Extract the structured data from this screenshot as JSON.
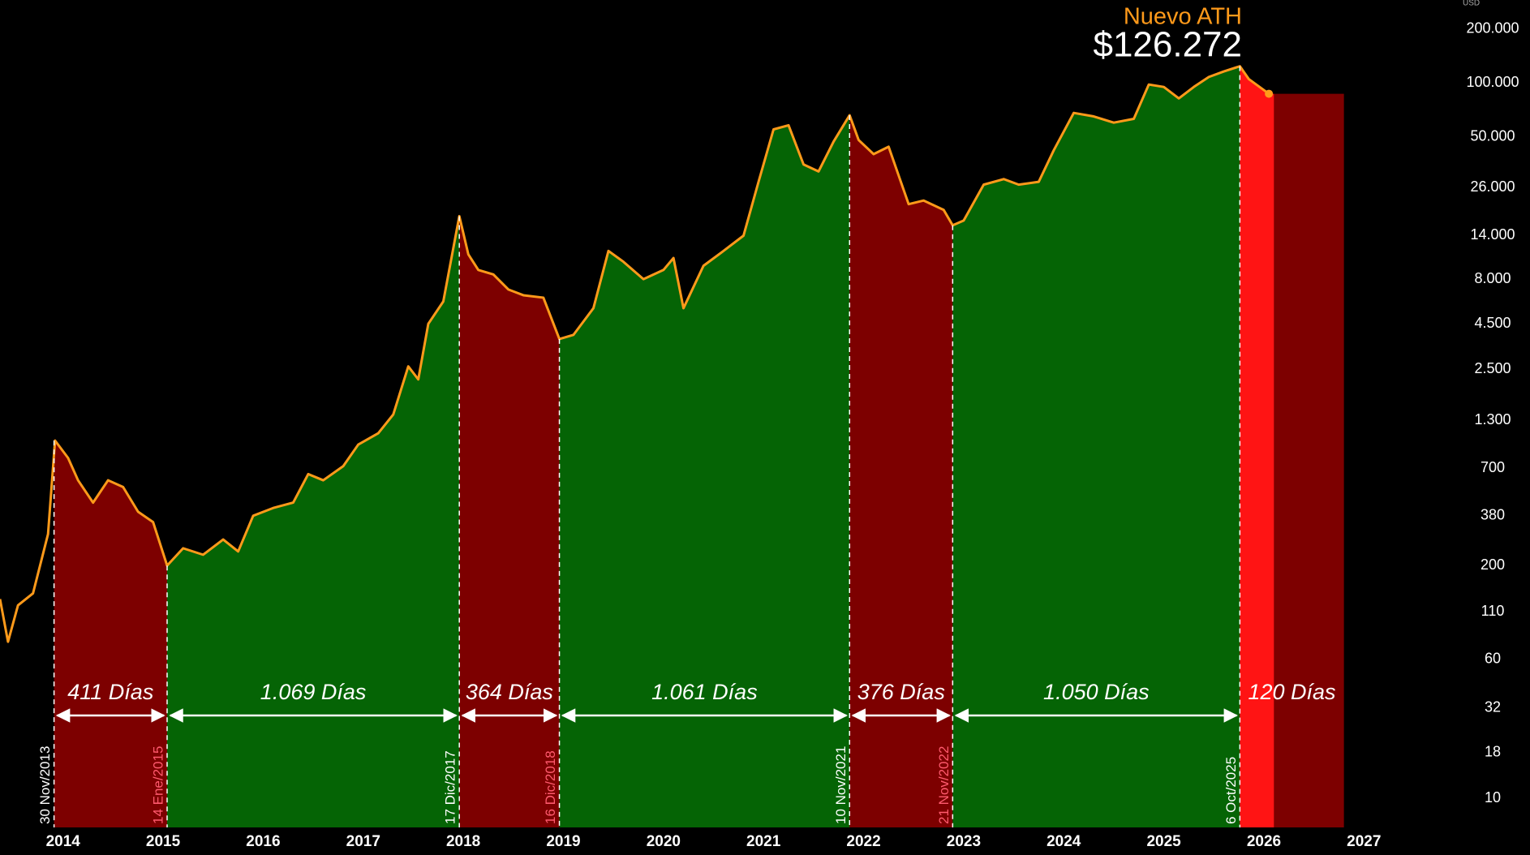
{
  "chart_data": {
    "type": "line",
    "currency": "USD",
    "annotation": {
      "title": "Nuevo ATH",
      "value": 126272,
      "label": "$126.272",
      "x": 2025.76
    },
    "x": [
      2013.37,
      2013.45,
      2013.55,
      2013.7,
      2013.85,
      2013.92,
      2014.05,
      2014.15,
      2014.3,
      2014.45,
      2014.6,
      2014.75,
      2014.9,
      2015.04,
      2015.2,
      2015.4,
      2015.6,
      2015.75,
      2015.9,
      2016.1,
      2016.3,
      2016.45,
      2016.6,
      2016.8,
      2016.95,
      2017.15,
      2017.3,
      2017.45,
      2017.55,
      2017.65,
      2017.8,
      2017.96,
      2018.05,
      2018.15,
      2018.3,
      2018.45,
      2018.6,
      2018.8,
      2018.96,
      2019.1,
      2019.3,
      2019.45,
      2019.6,
      2019.8,
      2020.0,
      2020.1,
      2020.2,
      2020.4,
      2020.6,
      2020.8,
      2020.95,
      2021.1,
      2021.25,
      2021.4,
      2021.55,
      2021.7,
      2021.86,
      2021.95,
      2022.1,
      2022.25,
      2022.45,
      2022.6,
      2022.8,
      2022.89,
      2023.0,
      2023.2,
      2023.4,
      2023.55,
      2023.75,
      2023.9,
      2024.1,
      2024.3,
      2024.5,
      2024.7,
      2024.85,
      2025.0,
      2025.15,
      2025.3,
      2025.45,
      2025.6,
      2025.76,
      2025.85,
      2026.05
    ],
    "values": [
      130,
      75,
      120,
      140,
      300,
      1000,
      800,
      600,
      450,
      600,
      550,
      400,
      350,
      200,
      250,
      230,
      280,
      240,
      380,
      420,
      450,
      650,
      600,
      720,
      950,
      1100,
      1400,
      2600,
      2200,
      4500,
      6000,
      18000,
      11000,
      9000,
      8500,
      7000,
      6500,
      6300,
      3700,
      3900,
      5500,
      11500,
      10000,
      8000,
      9000,
      10500,
      5500,
      9500,
      11500,
      14000,
      28000,
      55000,
      58000,
      35000,
      32000,
      47000,
      66000,
      48000,
      40000,
      44000,
      21000,
      22000,
      19500,
      16000,
      17000,
      27000,
      29000,
      27000,
      28000,
      42000,
      68000,
      65000,
      60000,
      63000,
      98000,
      95000,
      82000,
      95000,
      108000,
      116000,
      124000,
      105000,
      87000
    ],
    "color": "#ff9a1a",
    "log_scale": true,
    "xlim": [
      2013.37,
      2027.8
    ],
    "ylim": [
      6.87,
      291000
    ],
    "xticks": [
      2014,
      2015,
      2016,
      2017,
      2018,
      2019,
      2020,
      2021,
      2022,
      2023,
      2024,
      2025,
      2026,
      2027
    ],
    "yticks": [
      10,
      18,
      32,
      60,
      110,
      200,
      380,
      700,
      {
        "value": 1300,
        "label": "1.300"
      },
      {
        "value": 2500,
        "label": "2.500"
      },
      {
        "value": 4500,
        "label": "4.500"
      },
      {
        "value": 8000,
        "label": "8.000"
      },
      {
        "value": 14000,
        "label": "14.000"
      },
      {
        "value": 26000,
        "label": "26.000"
      },
      {
        "value": 50000,
        "label": "50.000"
      },
      {
        "value": 100000,
        "label": "100.000"
      },
      {
        "value": 200000,
        "label": "200.000"
      }
    ],
    "cycles": [
      {
        "start": 2013.91,
        "end": 2015.04,
        "label": "411 Días",
        "color": "#7d0000",
        "arrow": true
      },
      {
        "start": 2015.04,
        "end": 2017.96,
        "label": "1.069 Días",
        "color": "#056405",
        "arrow": true
      },
      {
        "start": 2017.96,
        "end": 2018.96,
        "label": "364 Días",
        "color": "#7d0000",
        "arrow": true
      },
      {
        "start": 2018.96,
        "end": 2021.86,
        "label": "1.061 Días",
        "color": "#056405",
        "arrow": true
      },
      {
        "start": 2021.86,
        "end": 2022.89,
        "label": "376 Días",
        "color": "#7d0000",
        "arrow": true
      },
      {
        "start": 2022.89,
        "end": 2025.76,
        "label": "1.050 Días",
        "color": "#056405",
        "arrow": true
      },
      {
        "start": 2025.76,
        "end": 2026.8,
        "label": "120 Días",
        "color": "#7d0000",
        "arrow": false
      }
    ],
    "highlight": {
      "start": 2025.76,
      "end": 2026.1,
      "color": "#ff1414"
    },
    "markers": [
      {
        "x": 2013.91,
        "label": "30 Nov/2013",
        "color": "#ffffff"
      },
      {
        "x": 2015.04,
        "label": "14 Ene/2015",
        "color": "#ff5a6e"
      },
      {
        "x": 2017.96,
        "label": "17 Dic/2017",
        "color": "#ffffff"
      },
      {
        "x": 2018.96,
        "label": "16 Dic/2018",
        "color": "#ff5a6e"
      },
      {
        "x": 2021.86,
        "label": "10 Nov/2021",
        "color": "#ffffff"
      },
      {
        "x": 2022.89,
        "label": "21 Nov/2022",
        "color": "#ff5a6e"
      },
      {
        "x": 2025.76,
        "label": "6 Oct/2025",
        "color": "#ffffff"
      }
    ]
  }
}
